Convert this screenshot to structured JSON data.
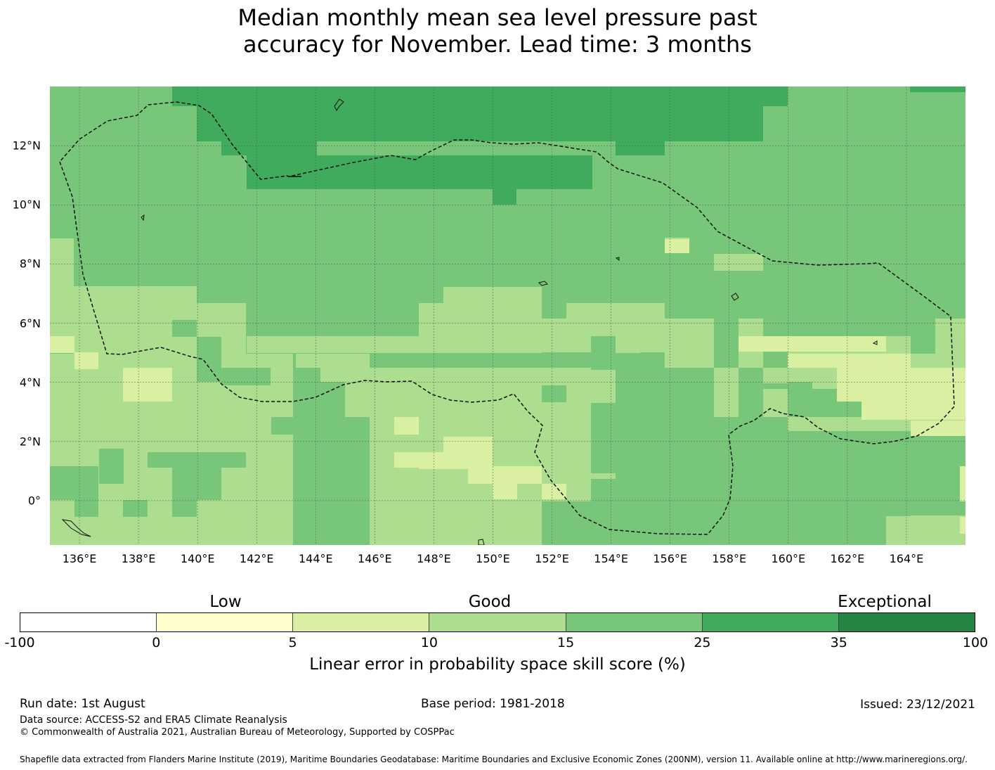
{
  "title": {
    "line1": "Median monthly mean sea level pressure past",
    "line2": "accuracy for November. Lead time: 3 months"
  },
  "map": {
    "lon_range": [
      135,
      166
    ],
    "lat_range": [
      -1.5,
      14
    ],
    "x_ticks": [
      "136°E",
      "138°E",
      "140°E",
      "142°E",
      "144°E",
      "146°E",
      "148°E",
      "150°E",
      "152°E",
      "154°E",
      "156°E",
      "158°E",
      "160°E",
      "162°E",
      "164°E"
    ],
    "y_ticks": [
      "12°N",
      "10°N",
      "8°N",
      "6°N",
      "4°N",
      "2°N",
      "0°"
    ],
    "eez_boundary": "dashed",
    "grid": true
  },
  "legend": {
    "categories": [
      "Low",
      "Good",
      "Exceptional"
    ],
    "ticks": [
      "-100",
      "0",
      "5",
      "10",
      "15",
      "25",
      "35",
      "100"
    ],
    "colors": [
      "#ffffff",
      "#ffffcc",
      "#d9f0a3",
      "#addd8e",
      "#78c679",
      "#41ab5d",
      "#238443"
    ],
    "label": "Linear error in probability space skill score (%)"
  },
  "footer": {
    "run_date": "Run date: 1st August",
    "base_period": "Base period: 1981-2018",
    "issued": "Issued: 23/12/2021",
    "data_source": "Data source: ACCESS-S2 and ERA5 Climate Reanalysis",
    "copyright": "© Commonwealth of Australia 2021, Australian Bureau of Meteorology, Supported by COSPPac",
    "shapefile": "Shapefile data extracted from Flanders Marine Institute (2019), Maritime Boundaries Geodatabase: Maritime Boundaries and Exclusive Economic Zones (200NM), version 11. Available online at http://www.marineregions.org/."
  }
}
